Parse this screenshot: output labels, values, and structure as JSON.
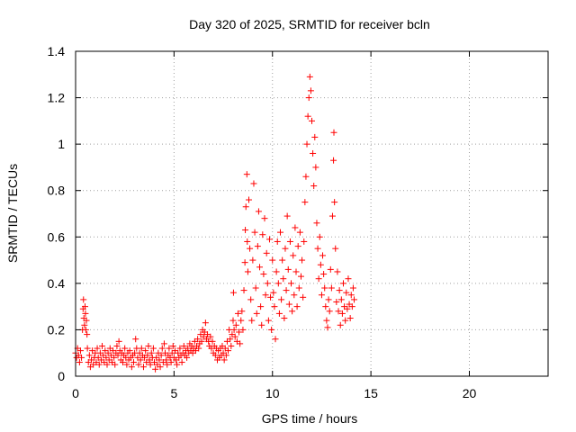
{
  "chart_data": {
    "type": "scatter",
    "title": "Day 320 of 2025, SRMTID for receiver bcln",
    "xlabel": "GPS time / hours",
    "ylabel": "SRMTID / TECUs",
    "xlim": [
      0,
      24
    ],
    "ylim": [
      0,
      1.4
    ],
    "xticks": [
      0,
      5,
      10,
      15,
      20
    ],
    "yticks": [
      0,
      0.2,
      0.4,
      0.6,
      0.8,
      1,
      1.2,
      1.4
    ],
    "xtick_labels": [
      "0",
      "5",
      "10",
      "15",
      "20"
    ],
    "ytick_labels": [
      "0",
      "0.2",
      "0.4",
      "0.6",
      "0.8",
      "1",
      "1.2",
      "1.4"
    ],
    "grid": true,
    "marker": "+",
    "series": [
      {
        "name": "SRMTID",
        "color": "#ff0000",
        "points": [
          [
            0.0,
            0.1
          ],
          [
            0.05,
            0.08
          ],
          [
            0.1,
            0.12
          ],
          [
            0.15,
            0.09
          ],
          [
            0.2,
            0.06
          ],
          [
            0.25,
            0.11
          ],
          [
            0.3,
            0.08
          ],
          [
            0.35,
            0.2
          ],
          [
            0.38,
            0.29
          ],
          [
            0.4,
            0.33
          ],
          [
            0.42,
            0.25
          ],
          [
            0.45,
            0.22
          ],
          [
            0.48,
            0.3
          ],
          [
            0.5,
            0.27
          ],
          [
            0.52,
            0.2
          ],
          [
            0.55,
            0.24
          ],
          [
            0.58,
            0.18
          ],
          [
            0.6,
            0.12
          ],
          [
            0.65,
            0.06
          ],
          [
            0.7,
            0.09
          ],
          [
            0.75,
            0.04
          ],
          [
            0.8,
            0.07
          ],
          [
            0.85,
            0.11
          ],
          [
            0.9,
            0.05
          ],
          [
            0.95,
            0.08
          ],
          [
            1.0,
            0.1
          ],
          [
            1.05,
            0.06
          ],
          [
            1.1,
            0.12
          ],
          [
            1.15,
            0.08
          ],
          [
            1.2,
            0.05
          ],
          [
            1.25,
            0.1
          ],
          [
            1.3,
            0.07
          ],
          [
            1.35,
            0.13
          ],
          [
            1.4,
            0.09
          ],
          [
            1.45,
            0.06
          ],
          [
            1.5,
            0.11
          ],
          [
            1.55,
            0.08
          ],
          [
            1.6,
            0.05
          ],
          [
            1.65,
            0.1
          ],
          [
            1.7,
            0.07
          ],
          [
            1.75,
            0.12
          ],
          [
            1.8,
            0.09
          ],
          [
            1.85,
            0.06
          ],
          [
            1.9,
            0.11
          ],
          [
            1.95,
            0.08
          ],
          [
            2.0,
            0.05
          ],
          [
            2.05,
            0.1
          ],
          [
            2.1,
            0.13
          ],
          [
            2.15,
            0.09
          ],
          [
            2.2,
            0.15
          ],
          [
            2.25,
            0.11
          ],
          [
            2.3,
            0.07
          ],
          [
            2.35,
            0.1
          ],
          [
            2.4,
            0.06
          ],
          [
            2.45,
            0.09
          ],
          [
            2.5,
            0.12
          ],
          [
            2.55,
            0.08
          ],
          [
            2.6,
            0.05
          ],
          [
            2.65,
            0.1
          ],
          [
            2.7,
            0.07
          ],
          [
            2.75,
            0.11
          ],
          [
            2.8,
            0.08
          ],
          [
            2.85,
            0.04
          ],
          [
            2.9,
            0.09
          ],
          [
            2.95,
            0.06
          ],
          [
            3.0,
            0.1
          ],
          [
            3.05,
            0.16
          ],
          [
            3.1,
            0.12
          ],
          [
            3.15,
            0.08
          ],
          [
            3.2,
            0.05
          ],
          [
            3.25,
            0.1
          ],
          [
            3.3,
            0.07
          ],
          [
            3.35,
            0.12
          ],
          [
            3.4,
            0.09
          ],
          [
            3.45,
            0.04
          ],
          [
            3.5,
            0.08
          ],
          [
            3.55,
            0.11
          ],
          [
            3.6,
            0.06
          ],
          [
            3.65,
            0.09
          ],
          [
            3.7,
            0.13
          ],
          [
            3.75,
            0.07
          ],
          [
            3.8,
            0.05
          ],
          [
            3.85,
            0.1
          ],
          [
            3.9,
            0.08
          ],
          [
            3.95,
            0.12
          ],
          [
            4.0,
            0.06
          ],
          [
            4.05,
            0.03
          ],
          [
            4.1,
            0.08
          ],
          [
            4.15,
            0.05
          ],
          [
            4.2,
            0.1
          ],
          [
            4.25,
            0.07
          ],
          [
            4.3,
            0.04
          ],
          [
            4.35,
            0.09
          ],
          [
            4.4,
            0.12
          ],
          [
            4.45,
            0.06
          ],
          [
            4.5,
            0.14
          ],
          [
            4.55,
            0.1
          ],
          [
            4.6,
            0.07
          ],
          [
            4.65,
            0.05
          ],
          [
            4.7,
            0.09
          ],
          [
            4.75,
            0.12
          ],
          [
            4.8,
            0.08
          ],
          [
            4.85,
            0.06
          ],
          [
            4.9,
            0.1
          ],
          [
            4.95,
            0.13
          ],
          [
            5.0,
            0.08
          ],
          [
            5.05,
            0.11
          ],
          [
            5.1,
            0.07
          ],
          [
            5.15,
            0.05
          ],
          [
            5.2,
            0.1
          ],
          [
            5.25,
            0.08
          ],
          [
            5.3,
            0.12
          ],
          [
            5.35,
            0.09
          ],
          [
            5.4,
            0.06
          ],
          [
            5.45,
            0.1
          ],
          [
            5.5,
            0.13
          ],
          [
            5.55,
            0.09
          ],
          [
            5.6,
            0.11
          ],
          [
            5.65,
            0.08
          ],
          [
            5.7,
            0.12
          ],
          [
            5.75,
            0.1
          ],
          [
            5.8,
            0.14
          ],
          [
            5.85,
            0.11
          ],
          [
            5.9,
            0.13
          ],
          [
            5.95,
            0.1
          ],
          [
            6.0,
            0.12
          ],
          [
            6.05,
            0.15
          ],
          [
            6.1,
            0.11
          ],
          [
            6.15,
            0.13
          ],
          [
            6.2,
            0.16
          ],
          [
            6.25,
            0.12
          ],
          [
            6.3,
            0.14
          ],
          [
            6.35,
            0.18
          ],
          [
            6.4,
            0.15
          ],
          [
            6.45,
            0.2
          ],
          [
            6.5,
            0.17
          ],
          [
            6.55,
            0.19
          ],
          [
            6.6,
            0.23
          ],
          [
            6.65,
            0.16
          ],
          [
            6.7,
            0.18
          ],
          [
            6.75,
            0.15
          ],
          [
            6.8,
            0.13
          ],
          [
            6.85,
            0.17
          ],
          [
            6.9,
            0.12
          ],
          [
            6.95,
            0.15
          ],
          [
            7.0,
            0.1
          ],
          [
            7.05,
            0.13
          ],
          [
            7.1,
            0.09
          ],
          [
            7.15,
            0.12
          ],
          [
            7.2,
            0.07
          ],
          [
            7.25,
            0.11
          ],
          [
            7.3,
            0.08
          ],
          [
            7.35,
            0.12
          ],
          [
            7.4,
            0.09
          ],
          [
            7.45,
            0.13
          ],
          [
            7.5,
            0.1
          ],
          [
            7.55,
            0.07
          ],
          [
            7.6,
            0.12
          ],
          [
            7.65,
            0.09
          ],
          [
            7.7,
            0.15
          ],
          [
            7.75,
            0.11
          ],
          [
            7.8,
            0.2
          ],
          [
            7.85,
            0.16
          ],
          [
            7.9,
            0.13
          ],
          [
            7.95,
            0.18
          ],
          [
            8.0,
            0.24
          ],
          [
            8.02,
            0.36
          ],
          [
            8.05,
            0.2
          ],
          [
            8.1,
            0.17
          ],
          [
            8.15,
            0.22
          ],
          [
            8.2,
            0.15
          ],
          [
            8.25,
            0.27
          ],
          [
            8.3,
            0.19
          ],
          [
            8.35,
            0.14
          ],
          [
            8.4,
            0.24
          ],
          [
            8.45,
            0.28
          ],
          [
            8.5,
            0.2
          ],
          [
            8.55,
            0.37
          ],
          [
            8.6,
            0.49
          ],
          [
            8.62,
            0.63
          ],
          [
            8.65,
            0.73
          ],
          [
            8.7,
            0.87
          ],
          [
            8.72,
            0.58
          ],
          [
            8.75,
            0.45
          ],
          [
            8.8,
            0.76
          ],
          [
            8.85,
            0.55
          ],
          [
            8.9,
            0.33
          ],
          [
            8.95,
            0.24
          ],
          [
            9.0,
            0.5
          ],
          [
            9.05,
            0.83
          ],
          [
            9.1,
            0.62
          ],
          [
            9.15,
            0.38
          ],
          [
            9.2,
            0.27
          ],
          [
            9.25,
            0.56
          ],
          [
            9.3,
            0.71
          ],
          [
            9.35,
            0.47
          ],
          [
            9.4,
            0.3
          ],
          [
            9.45,
            0.22
          ],
          [
            9.5,
            0.61
          ],
          [
            9.55,
            0.44
          ],
          [
            9.6,
            0.68
          ],
          [
            9.65,
            0.35
          ],
          [
            9.7,
            0.53
          ],
          [
            9.75,
            0.4
          ],
          [
            9.8,
            0.24
          ],
          [
            9.85,
            0.59
          ],
          [
            9.9,
            0.34
          ],
          [
            9.95,
            0.2
          ],
          [
            10.0,
            0.5
          ],
          [
            10.05,
            0.36
          ],
          [
            10.1,
            0.3
          ],
          [
            10.15,
            0.16
          ],
          [
            10.2,
            0.45
          ],
          [
            10.25,
            0.58
          ],
          [
            10.3,
            0.4
          ],
          [
            10.35,
            0.27
          ],
          [
            10.4,
            0.62
          ],
          [
            10.45,
            0.33
          ],
          [
            10.5,
            0.5
          ],
          [
            10.55,
            0.42
          ],
          [
            10.6,
            0.25
          ],
          [
            10.65,
            0.55
          ],
          [
            10.7,
            0.37
          ],
          [
            10.75,
            0.69
          ],
          [
            10.8,
            0.46
          ],
          [
            10.85,
            0.31
          ],
          [
            10.9,
            0.58
          ],
          [
            10.95,
            0.4
          ],
          [
            11.0,
            0.28
          ],
          [
            11.05,
            0.52
          ],
          [
            11.1,
            0.35
          ],
          [
            11.15,
            0.64
          ],
          [
            11.2,
            0.45
          ],
          [
            11.25,
            0.3
          ],
          [
            11.3,
            0.56
          ],
          [
            11.35,
            0.38
          ],
          [
            11.4,
            0.62
          ],
          [
            11.45,
            0.43
          ],
          [
            11.5,
            0.5
          ],
          [
            11.55,
            0.34
          ],
          [
            11.6,
            0.58
          ],
          [
            11.65,
            0.75
          ],
          [
            11.7,
            0.86
          ],
          [
            11.75,
            1.0
          ],
          [
            11.8,
            1.12
          ],
          [
            11.85,
            1.2
          ],
          [
            11.9,
            1.29
          ],
          [
            11.95,
            1.23
          ],
          [
            12.0,
            1.1
          ],
          [
            12.05,
            0.96
          ],
          [
            12.1,
            0.82
          ],
          [
            12.15,
            1.03
          ],
          [
            12.2,
            0.9
          ],
          [
            12.25,
            0.66
          ],
          [
            12.3,
            0.55
          ],
          [
            12.35,
            0.42
          ],
          [
            12.4,
            0.6
          ],
          [
            12.45,
            0.48
          ],
          [
            12.5,
            0.35
          ],
          [
            12.55,
            0.52
          ],
          [
            12.6,
            0.44
          ],
          [
            12.65,
            0.38
          ],
          [
            12.7,
            0.3
          ],
          [
            12.75,
            0.24
          ],
          [
            12.8,
            0.21
          ],
          [
            12.85,
            0.33
          ],
          [
            12.9,
            0.28
          ],
          [
            12.95,
            0.46
          ],
          [
            13.0,
            0.38
          ],
          [
            13.05,
            0.69
          ],
          [
            13.1,
            0.93
          ],
          [
            13.12,
            1.05
          ],
          [
            13.15,
            0.75
          ],
          [
            13.2,
            0.55
          ],
          [
            13.25,
            0.32
          ],
          [
            13.3,
            0.45
          ],
          [
            13.35,
            0.28
          ],
          [
            13.4,
            0.37
          ],
          [
            13.45,
            0.22
          ],
          [
            13.5,
            0.33
          ],
          [
            13.55,
            0.27
          ],
          [
            13.6,
            0.4
          ],
          [
            13.65,
            0.3
          ],
          [
            13.7,
            0.24
          ],
          [
            13.75,
            0.36
          ],
          [
            13.8,
            0.29
          ],
          [
            13.85,
            0.42
          ],
          [
            13.9,
            0.31
          ],
          [
            13.95,
            0.25
          ],
          [
            14.0,
            0.35
          ],
          [
            14.05,
            0.3
          ],
          [
            14.1,
            0.38
          ],
          [
            14.15,
            0.33
          ]
        ]
      }
    ]
  }
}
